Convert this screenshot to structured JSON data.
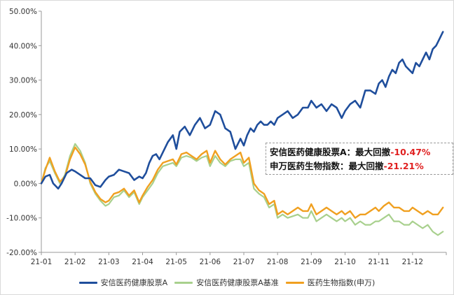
{
  "chart_data": {
    "type": "line",
    "title": "",
    "xlabel": "",
    "ylabel": "",
    "ylim": [
      -20,
      50
    ],
    "y_ticks": [
      -20,
      -10,
      0,
      10,
      20,
      30,
      40,
      50
    ],
    "y_tick_labels": [
      "-20.00%",
      "-10.00%",
      "0.00%",
      "10.00%",
      "20.00%",
      "30.00%",
      "40.00%",
      "50.00%"
    ],
    "x_tick_labels": [
      "21-01",
      "21-02",
      "21-03",
      "21-04",
      "21-05",
      "21-06",
      "21-07",
      "21-08",
      "21-09",
      "21-10",
      "21-11",
      "21-12"
    ],
    "xlim": [
      0,
      12
    ],
    "x_unit": "month index (0 = 21-01 start)",
    "grid": false,
    "legend_position": "bottom",
    "series": [
      {
        "name": "安信医药健康股票A",
        "color": "#1f4e9c",
        "width": 2.6,
        "x": [
          0,
          0.12,
          0.25,
          0.35,
          0.5,
          0.6,
          0.75,
          0.9,
          1.0,
          1.15,
          1.3,
          1.45,
          1.6,
          1.75,
          1.9,
          2.0,
          2.15,
          2.3,
          2.45,
          2.6,
          2.75,
          2.9,
          3.0,
          3.1,
          3.2,
          3.3,
          3.4,
          3.5,
          3.6,
          3.75,
          3.9,
          4.0,
          4.1,
          4.25,
          4.4,
          4.55,
          4.7,
          4.85,
          5.0,
          5.15,
          5.3,
          5.45,
          5.6,
          5.75,
          5.9,
          6.0,
          6.1,
          6.2,
          6.3,
          6.4,
          6.5,
          6.6,
          6.7,
          6.8,
          6.9,
          7.0,
          7.15,
          7.3,
          7.45,
          7.6,
          7.75,
          7.9,
          8.0,
          8.15,
          8.3,
          8.45,
          8.6,
          8.75,
          8.9,
          9.0,
          9.15,
          9.3,
          9.45,
          9.6,
          9.75,
          9.9,
          10.0,
          10.1,
          10.2,
          10.3,
          10.4,
          10.5,
          10.6,
          10.7,
          10.8,
          10.9,
          11.0,
          11.1,
          11.2,
          11.3,
          11.4,
          11.5,
          11.6,
          11.7,
          11.8,
          11.9
        ],
        "values": [
          0,
          2,
          2.5,
          0,
          -1.5,
          0,
          3,
          4,
          3.5,
          2.5,
          1.5,
          1.5,
          -0.5,
          -1,
          1,
          2,
          2.5,
          4,
          3.5,
          3,
          1,
          2,
          1.5,
          3,
          6,
          8,
          8.5,
          7,
          9,
          12,
          14,
          10,
          15,
          16.5,
          14,
          17,
          19,
          16,
          17,
          21,
          20,
          16,
          15,
          10,
          13,
          11,
          14,
          16,
          15,
          17,
          18,
          17,
          17,
          18,
          17,
          19,
          20,
          21,
          19,
          20,
          22,
          22,
          24,
          22,
          23,
          21,
          23,
          22,
          19,
          21,
          23,
          24,
          22,
          27,
          27,
          26,
          29,
          30,
          28,
          31,
          33,
          32,
          35,
          36,
          34,
          33,
          32,
          35,
          34,
          36,
          38,
          36,
          39,
          40,
          42,
          44
        ]
      },
      {
        "name": "安信医药健康股票A基准",
        "color": "#a8d08d",
        "width": 2.2,
        "x": [
          0,
          0.12,
          0.25,
          0.4,
          0.55,
          0.7,
          0.85,
          1.0,
          1.15,
          1.3,
          1.45,
          1.6,
          1.75,
          1.9,
          2.0,
          2.15,
          2.3,
          2.45,
          2.6,
          2.75,
          2.9,
          3.0,
          3.15,
          3.3,
          3.45,
          3.6,
          3.75,
          3.9,
          4.0,
          4.15,
          4.3,
          4.45,
          4.6,
          4.75,
          4.9,
          5.0,
          5.15,
          5.3,
          5.45,
          5.6,
          5.75,
          5.9,
          6.0,
          6.15,
          6.3,
          6.45,
          6.6,
          6.75,
          6.9,
          7.0,
          7.15,
          7.3,
          7.45,
          7.6,
          7.75,
          7.9,
          8.0,
          8.15,
          8.3,
          8.45,
          8.6,
          8.75,
          8.9,
          9.0,
          9.15,
          9.3,
          9.45,
          9.6,
          9.75,
          9.9,
          10.0,
          10.15,
          10.3,
          10.45,
          10.6,
          10.75,
          10.9,
          11.0,
          11.15,
          11.3,
          11.45,
          11.6,
          11.75,
          11.9
        ],
        "values": [
          0,
          4.5,
          6.5,
          3,
          0,
          2.5,
          8,
          11.5,
          9.5,
          6,
          0,
          -3,
          -5,
          -6.5,
          -6,
          -4,
          -3.5,
          -2,
          -4,
          -2.5,
          -6,
          -4,
          -2,
          0,
          3,
          5,
          5.5,
          6,
          5,
          7.5,
          8,
          7.5,
          6.5,
          7.5,
          8,
          5,
          8,
          6,
          5,
          6.5,
          7,
          7,
          5,
          6,
          -1.5,
          -3,
          -4,
          -7,
          -6,
          -10,
          -9,
          -10,
          -9.5,
          -9,
          -10,
          -10,
          -8,
          -11,
          -10,
          -9,
          -10,
          -11,
          -10,
          -11,
          -10,
          -12,
          -11,
          -12,
          -12,
          -11,
          -11,
          -10,
          -9,
          -11,
          -11,
          -12,
          -12,
          -11,
          -12,
          -13,
          -12,
          -14,
          -15,
          -14
        ]
      },
      {
        "name": "医药生物指数(申万)",
        "color": "#f0a020",
        "width": 2.4,
        "x": [
          0,
          0.12,
          0.25,
          0.4,
          0.55,
          0.7,
          0.85,
          1.0,
          1.15,
          1.3,
          1.45,
          1.6,
          1.75,
          1.9,
          2.0,
          2.15,
          2.3,
          2.45,
          2.6,
          2.75,
          2.9,
          3.0,
          3.15,
          3.3,
          3.45,
          3.6,
          3.75,
          3.9,
          4.0,
          4.15,
          4.3,
          4.45,
          4.6,
          4.75,
          4.9,
          5.0,
          5.15,
          5.3,
          5.45,
          5.6,
          5.75,
          5.9,
          6.0,
          6.15,
          6.3,
          6.45,
          6.6,
          6.75,
          6.9,
          7.0,
          7.15,
          7.3,
          7.45,
          7.6,
          7.75,
          7.9,
          8.0,
          8.15,
          8.3,
          8.45,
          8.6,
          8.75,
          8.9,
          9.0,
          9.15,
          9.3,
          9.45,
          9.6,
          9.75,
          9.9,
          10.0,
          10.15,
          10.3,
          10.45,
          10.6,
          10.75,
          10.9,
          11.0,
          11.15,
          11.3,
          11.45,
          11.6,
          11.75,
          11.9
        ],
        "values": [
          0,
          4,
          7.5,
          3.5,
          0.5,
          2,
          7,
          10.5,
          8.5,
          5.5,
          0.5,
          -2.5,
          -4.5,
          -5.5,
          -5,
          -3,
          -2.5,
          -1.5,
          -3.5,
          -2,
          -5.5,
          -3.5,
          -1,
          1,
          4,
          6,
          6.5,
          7,
          5.5,
          8.5,
          9,
          8,
          7,
          8.5,
          9.5,
          6,
          9.5,
          7,
          5.5,
          7,
          8,
          9,
          6,
          7.5,
          0,
          -2,
          -3,
          -6,
          -5,
          -9,
          -8,
          -9,
          -8,
          -7,
          -8,
          -8,
          -6,
          -9,
          -8,
          -7,
          -8,
          -9,
          -8,
          -9,
          -8,
          -10,
          -9,
          -9,
          -8,
          -7,
          -8,
          -6.5,
          -5.5,
          -7,
          -7,
          -8,
          -8,
          -7,
          -8,
          -9,
          -8,
          -9,
          -9,
          -7
        ]
      }
    ]
  },
  "annotation": {
    "line1_label": "安信医药健康股票A：最大回撤",
    "line1_value": "-10.47%",
    "line2_label": "申万医药生物指数：最大回撤",
    "line2_value": "-21.21%"
  },
  "legend": {
    "items": [
      "安信医药健康股票A",
      "安信医药健康股票A基准",
      "医药生物指数(申万)"
    ],
    "colors": [
      "#1f4e9c",
      "#a8d08d",
      "#f0a020"
    ]
  }
}
